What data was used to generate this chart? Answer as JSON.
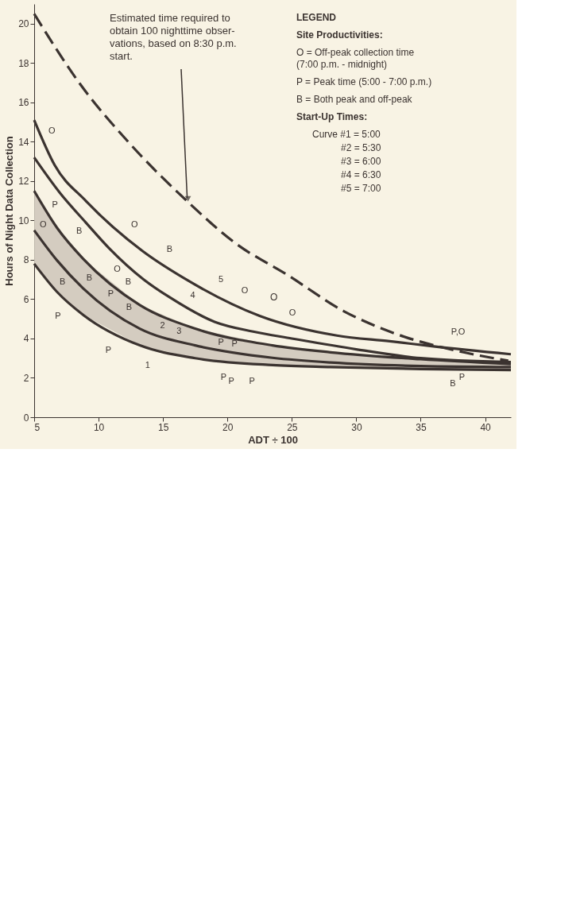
{
  "chart_data": {
    "type": "line",
    "xlabel": "ADT ÷ 100",
    "ylabel": "Hours of Night Data Collection",
    "xlim": [
      5,
      42
    ],
    "ylim": [
      0,
      21
    ],
    "xticks": [
      5,
      10,
      15,
      20,
      25,
      30,
      35,
      40
    ],
    "yticks": [
      0,
      2,
      4,
      6,
      8,
      10,
      12,
      14,
      16,
      18,
      20
    ],
    "marker": "none",
    "series": [
      {
        "color": "#3b3330",
        "line_style": "dashed",
        "x": [
          5,
          8.6,
          12.36,
          17,
          20.5,
          24.8,
          29,
          32.6,
          38.4,
          41.8
        ],
        "values": [
          20.5,
          16.9,
          13.95,
          10.9,
          8.9,
          7.17,
          5.4,
          4.35,
          3.29,
          2.87
        ]
      },
      {
        "color": "#3b3330",
        "x": [
          5,
          6.6,
          9,
          13.4,
          16.8,
          22.5,
          28.5,
          32.6,
          36,
          42
        ],
        "values": [
          15.1,
          12.8,
          11.0,
          8.45,
          7.0,
          5.15,
          4.15,
          3.86,
          3.6,
          3.2
        ]
      },
      {
        "color": "#3b3330",
        "x": [
          5,
          7,
          9,
          10.8,
          13.5,
          15.5,
          19,
          22,
          25,
          30,
          35,
          42
        ],
        "values": [
          13.2,
          11.4,
          9.9,
          8.6,
          7.0,
          6.1,
          4.85,
          4.35,
          4.0,
          3.45,
          3.0,
          2.8
        ]
      },
      {
        "color": "#3b3330",
        "x": [
          5,
          6.8,
          8.8,
          13.2,
          17.5,
          23.5,
          28,
          35,
          42
        ],
        "values": [
          11.5,
          9.6,
          8.05,
          5.7,
          4.5,
          3.65,
          3.3,
          2.95,
          2.7
        ]
      },
      {
        "color": "#3b3330",
        "x": [
          5,
          6.8,
          8.8,
          13.2,
          17.5,
          23.5,
          28,
          35,
          42
        ],
        "values": [
          9.5,
          7.95,
          6.55,
          4.5,
          3.65,
          3.02,
          2.78,
          2.6,
          2.55
        ],
        "lower": [
          7.8,
          6.35,
          5.2,
          3.65,
          3.0,
          2.65,
          2.55,
          2.45,
          2.4
        ],
        "upper": [
          11.5,
          9.6,
          8.05,
          5.7,
          4.5,
          3.65,
          3.3,
          2.95,
          2.7
        ]
      },
      {
        "color": "#3b3330",
        "x": [
          5,
          6.8,
          8.8,
          13.2,
          17.5,
          23.5,
          28,
          35,
          42
        ],
        "values": [
          7.8,
          6.35,
          5.2,
          3.65,
          3.0,
          2.65,
          2.55,
          2.45,
          2.4
        ]
      }
    ],
    "annotations": [
      "LEGEND",
      "Site Productivities:",
      "O = Off-peak collection time\n      (7:00 p.m. - midnight)",
      "P = Peak time (5:00 - 7:00 p.m.)",
      "B = Both peak and off-peak",
      "Start-Up Times:",
      "Curve #1 = 5:00",
      "#2 = 5:30",
      "#3 = 6:00",
      "#4 = 6:30",
      "#5 = 7:00",
      "O",
      {
        "text": "Estimated time required to\nobtain 100 nighttime obser-\nvations, based on 8:30 p.m.\nstart.",
        "x": 17,
        "y": 10.9
      },
      {
        "text": "O",
        "x": 5.64,
        "y": 13.9
      },
      {
        "text": "B",
        "x": 14.77,
        "y": 7.86
      },
      {
        "text": "5",
        "x": 18.76,
        "y": 6.34
      },
      {
        "text": "O",
        "x": 20.6,
        "y": 5.77
      },
      {
        "text": "O",
        "x": 25.05,
        "y": 4.5
      },
      {
        "text": "O",
        "x": 12.0,
        "y": 7.86
      },
      {
        "text": "O",
        "x": 12.05,
        "y": 9.14
      },
      {
        "text": "4",
        "x": 17.3,
        "y": 5.39
      },
      {
        "text": "P",
        "x": 6.06,
        "y": 10.4
      },
      {
        "text": "B",
        "x": 7.75,
        "y": 8.8
      },
      {
        "text": "B",
        "x": 9.84,
        "y": 7.43
      },
      {
        "text": "B",
        "x": 12.3,
        "y": 6.05
      },
      {
        "text": "3",
        "x": 16.24,
        "y": 4.77
      },
      {
        "text": "P",
        "x": 20,
        "y": 4.06
      },
      {
        "text": "O",
        "x": 5.7,
        "y": 8.95
      },
      {
        "text": "B",
        "x": 7.75,
        "y": 7.24
      },
      {
        "text": "P",
        "x": 10.94,
        "y": 5.46
      },
      {
        "text": "B",
        "x": 12.36,
        "y": 4.77
      },
      {
        "text": "2",
        "x": 14.96,
        "y": 4.06
      },
      {
        "text": "P",
        "x": 19.5,
        "y": 3.44
      },
      {
        "text": "P",
        "x": 7.58,
        "y": 5.84
      },
      {
        "text": "P",
        "x": 11.5,
        "y": 4.13
      },
      {
        "text": "1",
        "x": 13.8,
        "y": 3.49
      },
      {
        "text": "P",
        "x": 19.7,
        "y": 2.85
      },
      {
        "text": "P",
        "x": 20.3,
        "y": 2.65
      },
      {
        "text": "P",
        "x": 21.9,
        "y": 2.68
      },
      {
        "text": "P,O",
        "x": 37.9,
        "y": 3.5
      },
      {
        "text": "B",
        "x": 37.5,
        "y": 2.55
      },
      {
        "text": "P",
        "x": 38.2,
        "y": 2.85
      }
    ]
  }
}
